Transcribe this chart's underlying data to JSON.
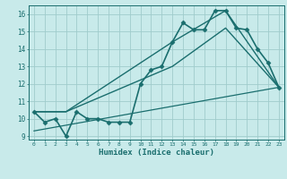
{
  "title": "",
  "xlabel": "Humidex (Indice chaleur)",
  "xlim": [
    -0.5,
    23.5
  ],
  "ylim": [
    8.8,
    16.5
  ],
  "xticks": [
    0,
    1,
    2,
    3,
    4,
    5,
    6,
    7,
    8,
    9,
    10,
    11,
    12,
    13,
    14,
    15,
    16,
    17,
    18,
    19,
    20,
    21,
    22,
    23
  ],
  "yticks": [
    9,
    10,
    11,
    12,
    13,
    14,
    15,
    16
  ],
  "bg_color": "#c8eaea",
  "grid_color": "#a0cccc",
  "line_color": "#1a6e6e",
  "series": [
    {
      "x": [
        0,
        1,
        2,
        3,
        4,
        5,
        6,
        7,
        8,
        9,
        10,
        11,
        12,
        13,
        14,
        15,
        16,
        17,
        18,
        19,
        20,
        21,
        22,
        23
      ],
      "y": [
        10.4,
        9.8,
        10.0,
        9.0,
        10.4,
        10.0,
        10.0,
        9.8,
        9.8,
        9.8,
        12.0,
        12.8,
        13.0,
        14.4,
        15.5,
        15.1,
        15.1,
        16.2,
        16.2,
        15.2,
        15.1,
        14.0,
        13.2,
        11.8
      ],
      "marker": "D",
      "markersize": 2.5,
      "linewidth": 1.2
    },
    {
      "x": [
        0,
        3,
        13,
        18,
        23
      ],
      "y": [
        10.4,
        10.4,
        14.4,
        16.2,
        11.8
      ],
      "marker": null,
      "markersize": 0,
      "linewidth": 1.0
    },
    {
      "x": [
        0,
        3,
        13,
        18,
        23
      ],
      "y": [
        10.4,
        10.4,
        13.0,
        15.2,
        11.8
      ],
      "marker": null,
      "markersize": 0,
      "linewidth": 1.0
    },
    {
      "x": [
        0,
        23
      ],
      "y": [
        9.3,
        11.8
      ],
      "marker": null,
      "markersize": 0,
      "linewidth": 0.9
    }
  ]
}
